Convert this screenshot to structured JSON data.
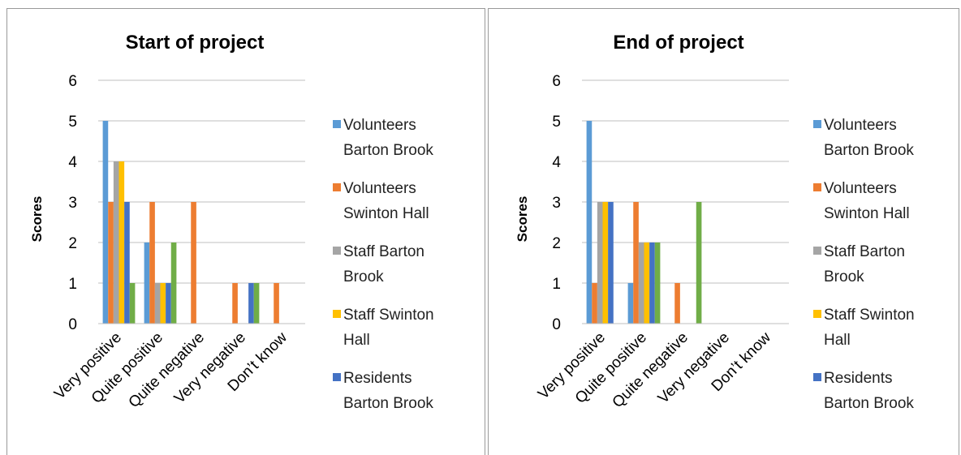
{
  "colors": {
    "Volunteers Barton Brook": "#5B9BD5",
    "Volunteers Swinton Hall": "#ED7D31",
    "Staff Barton Brook": "#A5A5A5",
    "Staff Swinton Hall": "#FFC000",
    "Residents Barton Brook": "#4472C4",
    "series6": "#70AD47",
    "grid": "#BFBFBF",
    "frame": "#9A9A9A"
  },
  "chart_data": [
    {
      "type": "bar",
      "title": "Start of project",
      "ylabel": "Scores",
      "xlabel": "",
      "ylim": [
        0,
        6
      ],
      "yticks": [
        "0",
        "1",
        "2",
        "3",
        "4",
        "5",
        "6"
      ],
      "grid": true,
      "legend_position": "right",
      "categories": [
        "Very positive",
        "Quite positive",
        "Quite negative",
        "Very negative",
        "Don’t know"
      ],
      "series": [
        {
          "name": "Volunteers Barton Brook",
          "values": [
            5,
            2,
            0,
            0,
            0
          ]
        },
        {
          "name": "Volunteers Swinton Hall",
          "values": [
            3,
            3,
            3,
            1,
            1
          ]
        },
        {
          "name": "Staff Barton Brook",
          "values": [
            4,
            1,
            0,
            0,
            0
          ]
        },
        {
          "name": "Staff Swinton Hall",
          "values": [
            4,
            1,
            0,
            0,
            0
          ]
        },
        {
          "name": "Residents Barton Brook",
          "values": [
            3,
            1,
            0,
            1,
            0
          ]
        },
        {
          "values": [
            1,
            2,
            0,
            1,
            0
          ]
        }
      ],
      "legend": [
        {
          "line1": "Volunteers",
          "line2": "Barton Brook"
        },
        {
          "line1": "Volunteers",
          "line2": "Swinton Hall"
        },
        {
          "line1": "Staff Barton",
          "line2": "Brook"
        },
        {
          "line1": "Staff Swinton",
          "line2": "Hall"
        },
        {
          "line1": "Residents",
          "line2": "Barton Brook"
        }
      ]
    },
    {
      "type": "bar",
      "title": "End of project",
      "ylabel": "Scores",
      "xlabel": "",
      "ylim": [
        0,
        6
      ],
      "yticks": [
        "0",
        "1",
        "2",
        "3",
        "4",
        "5",
        "6"
      ],
      "grid": true,
      "legend_position": "right",
      "categories": [
        "Very positive",
        "Quite positive",
        "Quite negative",
        "Very negative",
        "Don’t know"
      ],
      "series": [
        {
          "name": "Volunteers Barton Brook",
          "values": [
            5,
            1,
            0,
            0,
            0
          ]
        },
        {
          "name": "Volunteers Swinton Hall",
          "values": [
            1,
            3,
            1,
            0,
            0
          ]
        },
        {
          "name": "Staff Barton Brook",
          "values": [
            3,
            2,
            0,
            0,
            0
          ]
        },
        {
          "name": "Staff Swinton Hall",
          "values": [
            3,
            2,
            0,
            0,
            0
          ]
        },
        {
          "name": "Residents Barton Brook",
          "values": [
            3,
            2,
            0,
            0,
            0
          ]
        },
        {
          "values": [
            0,
            2,
            3,
            0,
            0
          ]
        }
      ],
      "legend": [
        {
          "line1": "Volunteers",
          "line2": "Barton Brook"
        },
        {
          "line1": "Volunteers",
          "line2": "Swinton Hall"
        },
        {
          "line1": "Staff Barton",
          "line2": "Brook"
        },
        {
          "line1": "Staff Swinton",
          "line2": "Hall"
        },
        {
          "line1": "Residents",
          "line2": "Barton Brook"
        }
      ]
    }
  ]
}
